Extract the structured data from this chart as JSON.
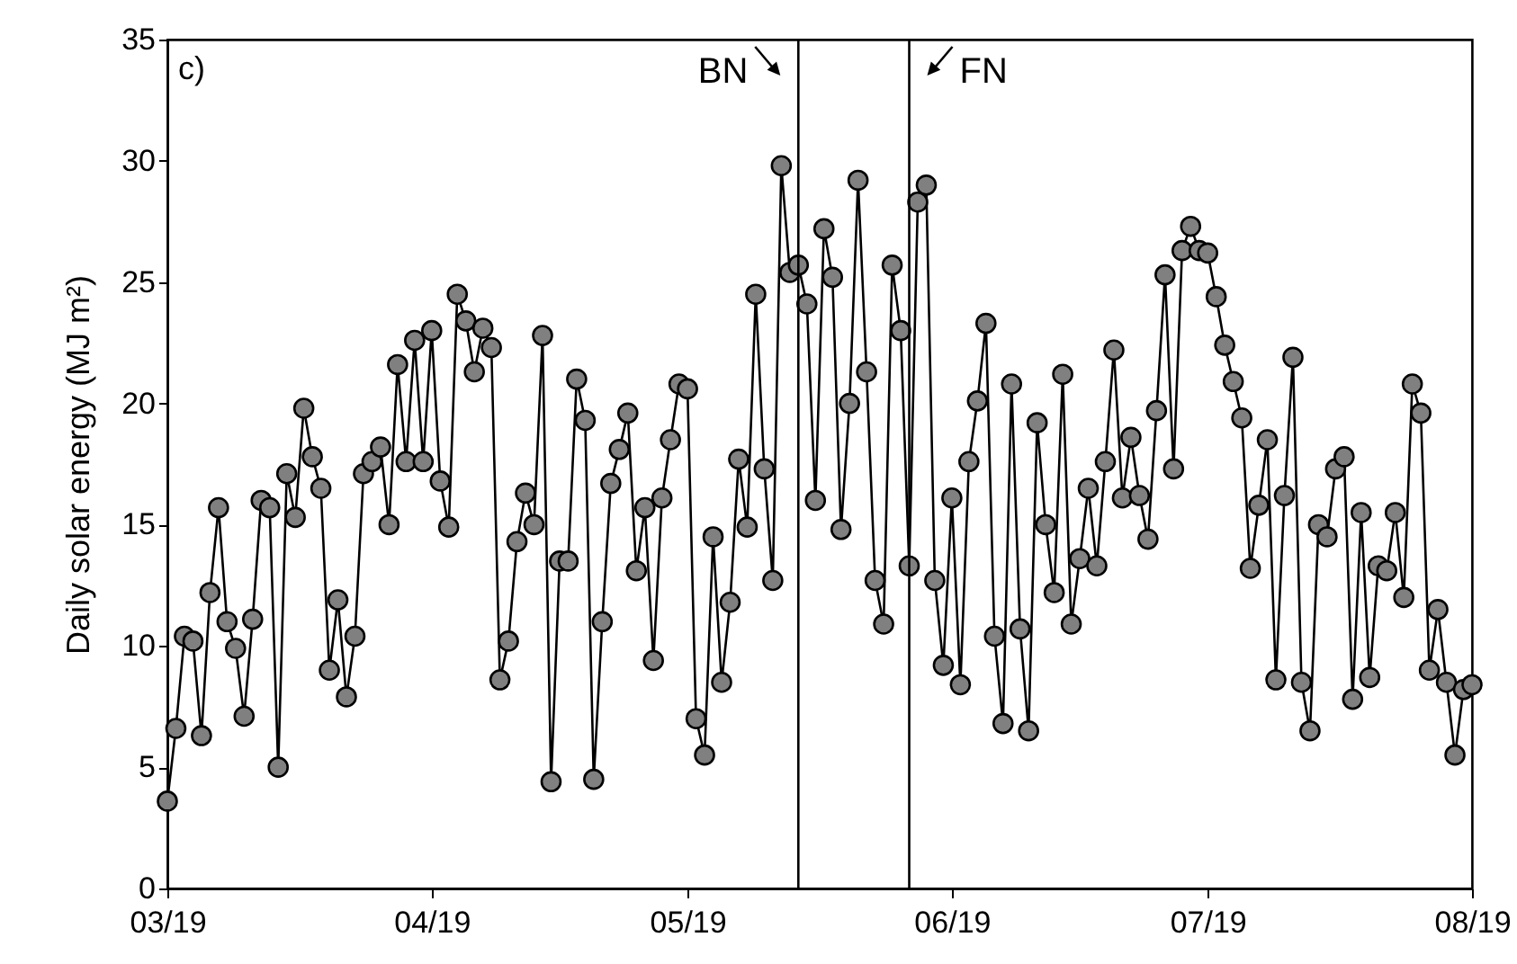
{
  "chart_data": {
    "type": "line",
    "ylabel": "Daily solar energy (MJ m²)",
    "annotations": [
      "c)"
    ],
    "xlim": [
      "2019-03-01",
      "2019-08-01"
    ],
    "xticks": [
      {
        "value": "2019-03-01",
        "label": "03/19"
      },
      {
        "value": "2019-04-01",
        "label": "04/19"
      },
      {
        "value": "2019-05-01",
        "label": "05/19"
      },
      {
        "value": "2019-06-01",
        "label": "06/19"
      },
      {
        "value": "2019-07-01",
        "label": "07/19"
      },
      {
        "value": "2019-08-01",
        "label": "08/19"
      }
    ],
    "ylim": [
      0,
      35
    ],
    "yticks": [
      0,
      5,
      10,
      15,
      20,
      25,
      30,
      35
    ],
    "marker": "circle",
    "line_style": "solid",
    "ref_lines": [
      {
        "axis": "x",
        "value": "2019-05-14",
        "label": "BN"
      },
      {
        "axis": "x",
        "value": "2019-05-27",
        "label": "FN"
      }
    ],
    "x": [
      "2019-03-01",
      "2019-03-02",
      "2019-03-03",
      "2019-03-04",
      "2019-03-05",
      "2019-03-06",
      "2019-03-07",
      "2019-03-08",
      "2019-03-09",
      "2019-03-10",
      "2019-03-11",
      "2019-03-12",
      "2019-03-13",
      "2019-03-14",
      "2019-03-15",
      "2019-03-16",
      "2019-03-17",
      "2019-03-18",
      "2019-03-19",
      "2019-03-20",
      "2019-03-21",
      "2019-03-22",
      "2019-03-23",
      "2019-03-24",
      "2019-03-25",
      "2019-03-26",
      "2019-03-27",
      "2019-03-28",
      "2019-03-29",
      "2019-03-30",
      "2019-03-31",
      "2019-04-01",
      "2019-04-02",
      "2019-04-03",
      "2019-04-04",
      "2019-04-05",
      "2019-04-06",
      "2019-04-07",
      "2019-04-08",
      "2019-04-09",
      "2019-04-10",
      "2019-04-11",
      "2019-04-12",
      "2019-04-13",
      "2019-04-14",
      "2019-04-15",
      "2019-04-16",
      "2019-04-17",
      "2019-04-18",
      "2019-04-19",
      "2019-04-20",
      "2019-04-21",
      "2019-04-22",
      "2019-04-23",
      "2019-04-24",
      "2019-04-25",
      "2019-04-26",
      "2019-04-27",
      "2019-04-28",
      "2019-04-29",
      "2019-04-30",
      "2019-05-01",
      "2019-05-02",
      "2019-05-03",
      "2019-05-04",
      "2019-05-05",
      "2019-05-06",
      "2019-05-07",
      "2019-05-08",
      "2019-05-09",
      "2019-05-10",
      "2019-05-11",
      "2019-05-12",
      "2019-05-13",
      "2019-05-14",
      "2019-05-15",
      "2019-05-16",
      "2019-05-17",
      "2019-05-18",
      "2019-05-19",
      "2019-05-20",
      "2019-05-21",
      "2019-05-22",
      "2019-05-23",
      "2019-05-24",
      "2019-05-25",
      "2019-05-26",
      "2019-05-27",
      "2019-05-28",
      "2019-05-29",
      "2019-05-30",
      "2019-05-31",
      "2019-06-01",
      "2019-06-02",
      "2019-06-03",
      "2019-06-04",
      "2019-06-05",
      "2019-06-06",
      "2019-06-07",
      "2019-06-08",
      "2019-06-09",
      "2019-06-10",
      "2019-06-11",
      "2019-06-12",
      "2019-06-13",
      "2019-06-14",
      "2019-06-15",
      "2019-06-16",
      "2019-06-17",
      "2019-06-18",
      "2019-06-19",
      "2019-06-20",
      "2019-06-21",
      "2019-06-22",
      "2019-06-23",
      "2019-06-24",
      "2019-06-25",
      "2019-06-26",
      "2019-06-27",
      "2019-06-28",
      "2019-06-29",
      "2019-06-30",
      "2019-07-01",
      "2019-07-02",
      "2019-07-03",
      "2019-07-04",
      "2019-07-05",
      "2019-07-06",
      "2019-07-07",
      "2019-07-08",
      "2019-07-09",
      "2019-07-10",
      "2019-07-11",
      "2019-07-12",
      "2019-07-13",
      "2019-07-14",
      "2019-07-15",
      "2019-07-16",
      "2019-07-17",
      "2019-07-18",
      "2019-07-19",
      "2019-07-20",
      "2019-07-21",
      "2019-07-22",
      "2019-07-23",
      "2019-07-24",
      "2019-07-25",
      "2019-07-26",
      "2019-07-27",
      "2019-07-28",
      "2019-07-29",
      "2019-07-30",
      "2019-07-31",
      "2019-08-01"
    ],
    "series": [
      {
        "color": "#808080",
        "values": [
          3.6,
          6.6,
          10.4,
          10.2,
          6.3,
          12.2,
          15.7,
          11.0,
          9.9,
          7.1,
          11.1,
          16.0,
          15.7,
          5.0,
          17.1,
          15.3,
          19.8,
          17.8,
          16.5,
          9.0,
          11.9,
          7.9,
          10.4,
          17.1,
          17.6,
          18.2,
          15.0,
          21.6,
          17.6,
          22.6,
          17.6,
          23.0,
          16.8,
          14.9,
          24.5,
          23.4,
          21.3,
          23.1,
          22.3,
          8.6,
          10.2,
          14.3,
          16.3,
          15.0,
          22.8,
          4.4,
          13.5,
          13.5,
          21.0,
          19.3,
          4.5,
          11.0,
          16.7,
          18.1,
          19.6,
          13.1,
          15.7,
          9.4,
          16.1,
          18.5,
          20.8,
          20.6,
          7.0,
          5.5,
          14.5,
          8.5,
          11.8,
          17.7,
          14.9,
          24.5,
          17.3,
          12.7,
          29.8,
          25.4,
          25.7,
          24.1,
          16.0,
          27.2,
          25.2,
          14.8,
          20.0,
          29.2,
          21.3,
          12.7,
          10.9,
          25.7,
          23.0,
          13.3,
          28.3,
          29.0,
          12.7,
          9.2,
          16.1,
          8.4,
          17.6,
          20.1,
          23.3,
          10.4,
          6.8,
          20.8,
          10.7,
          6.5,
          19.2,
          15.0,
          12.2,
          21.2,
          10.9,
          13.6,
          16.5,
          13.3,
          17.6,
          22.2,
          16.1,
          18.6,
          16.2,
          14.4,
          19.7,
          25.3,
          17.3,
          26.3,
          27.3,
          26.3,
          26.2,
          24.4,
          22.4,
          20.9,
          19.4,
          13.2,
          15.8,
          18.5,
          8.6,
          16.2,
          21.9,
          8.5,
          6.5,
          15.0,
          14.5,
          17.3,
          17.8,
          7.8,
          15.5,
          8.7,
          13.3,
          13.1,
          15.5,
          12.0,
          20.8,
          19.6,
          9.0,
          11.5,
          8.5,
          5.5,
          8.2,
          8.4
        ]
      }
    ]
  }
}
